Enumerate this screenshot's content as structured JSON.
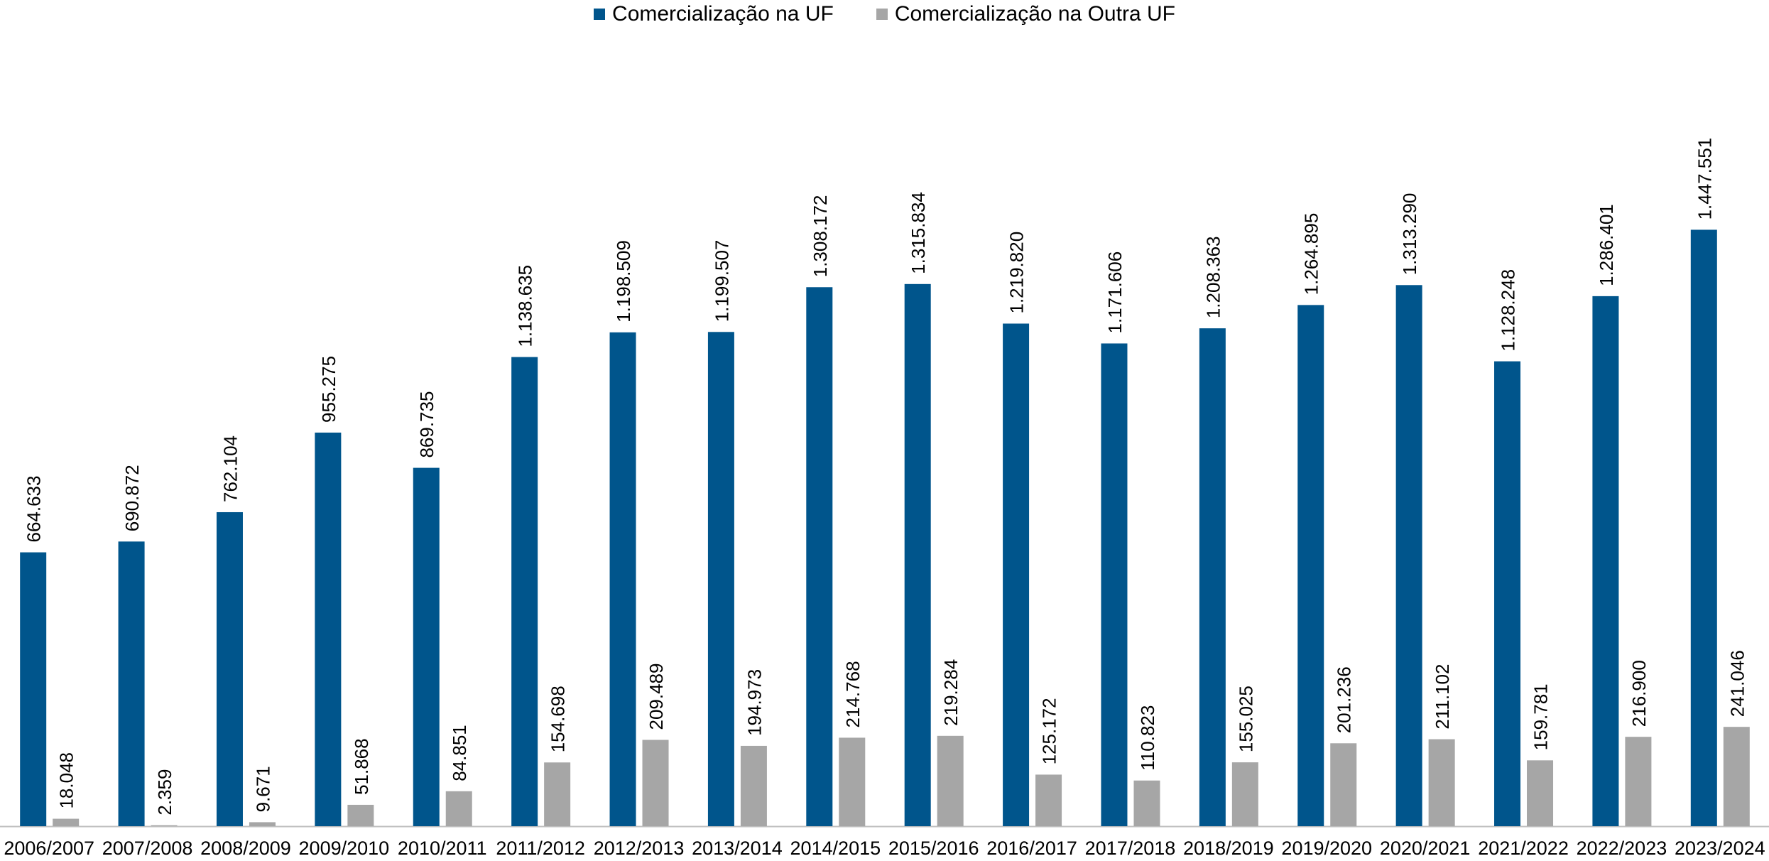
{
  "colors": {
    "series1": "#00558C",
    "series2": "#A6A6A6",
    "axis": "#BFBFBF",
    "text": "#000000"
  },
  "chart_data": {
    "type": "bar",
    "categories": [
      "2006/2007",
      "2007/2008",
      "2008/2009",
      "2009/2010",
      "2010/2011",
      "2011/2012",
      "2012/2013",
      "2013/2014",
      "2014/2015",
      "2015/2016",
      "2016/2017",
      "2017/2018",
      "2018/2019",
      "2019/2020",
      "2020/2021",
      "2021/2022",
      "2022/2023",
      "2023/2024"
    ],
    "series": [
      {
        "name": "Comercialização na UF",
        "values": [
          664633,
          690872,
          762104,
          955275,
          869735,
          1138635,
          1198509,
          1199507,
          1308172,
          1315834,
          1219820,
          1171606,
          1208363,
          1264895,
          1313290,
          1128248,
          1286401,
          1447551
        ],
        "labels": [
          "664.633",
          "690.872",
          "762.104",
          "955.275",
          "869.735",
          "1.138.635",
          "1.198.509",
          "1.199.507",
          "1.308.172",
          "1.315.834",
          "1.219.820",
          "1.171.606",
          "1.208.363",
          "1.264.895",
          "1.313.290",
          "1.128.248",
          "1.286.401",
          "1.447.551"
        ]
      },
      {
        "name": "Comercialização na Outra UF",
        "values": [
          18048,
          2359,
          9671,
          51868,
          84851,
          154698,
          209489,
          194973,
          214768,
          219284,
          125172,
          110823,
          155025,
          201236,
          211102,
          159781,
          216900,
          241046
        ],
        "labels": [
          "18.048",
          "2.359",
          "9.671",
          "51.868",
          "84.851",
          "154.698",
          "209.489",
          "194.973",
          "214.768",
          "219.284",
          "125.172",
          "110.823",
          "155.025",
          "201.236",
          "211.102",
          "159.781",
          "216.900",
          "241.046"
        ]
      }
    ],
    "ylim": [
      0,
      1600000
    ],
    "legend": "top-center",
    "grid": false
  }
}
